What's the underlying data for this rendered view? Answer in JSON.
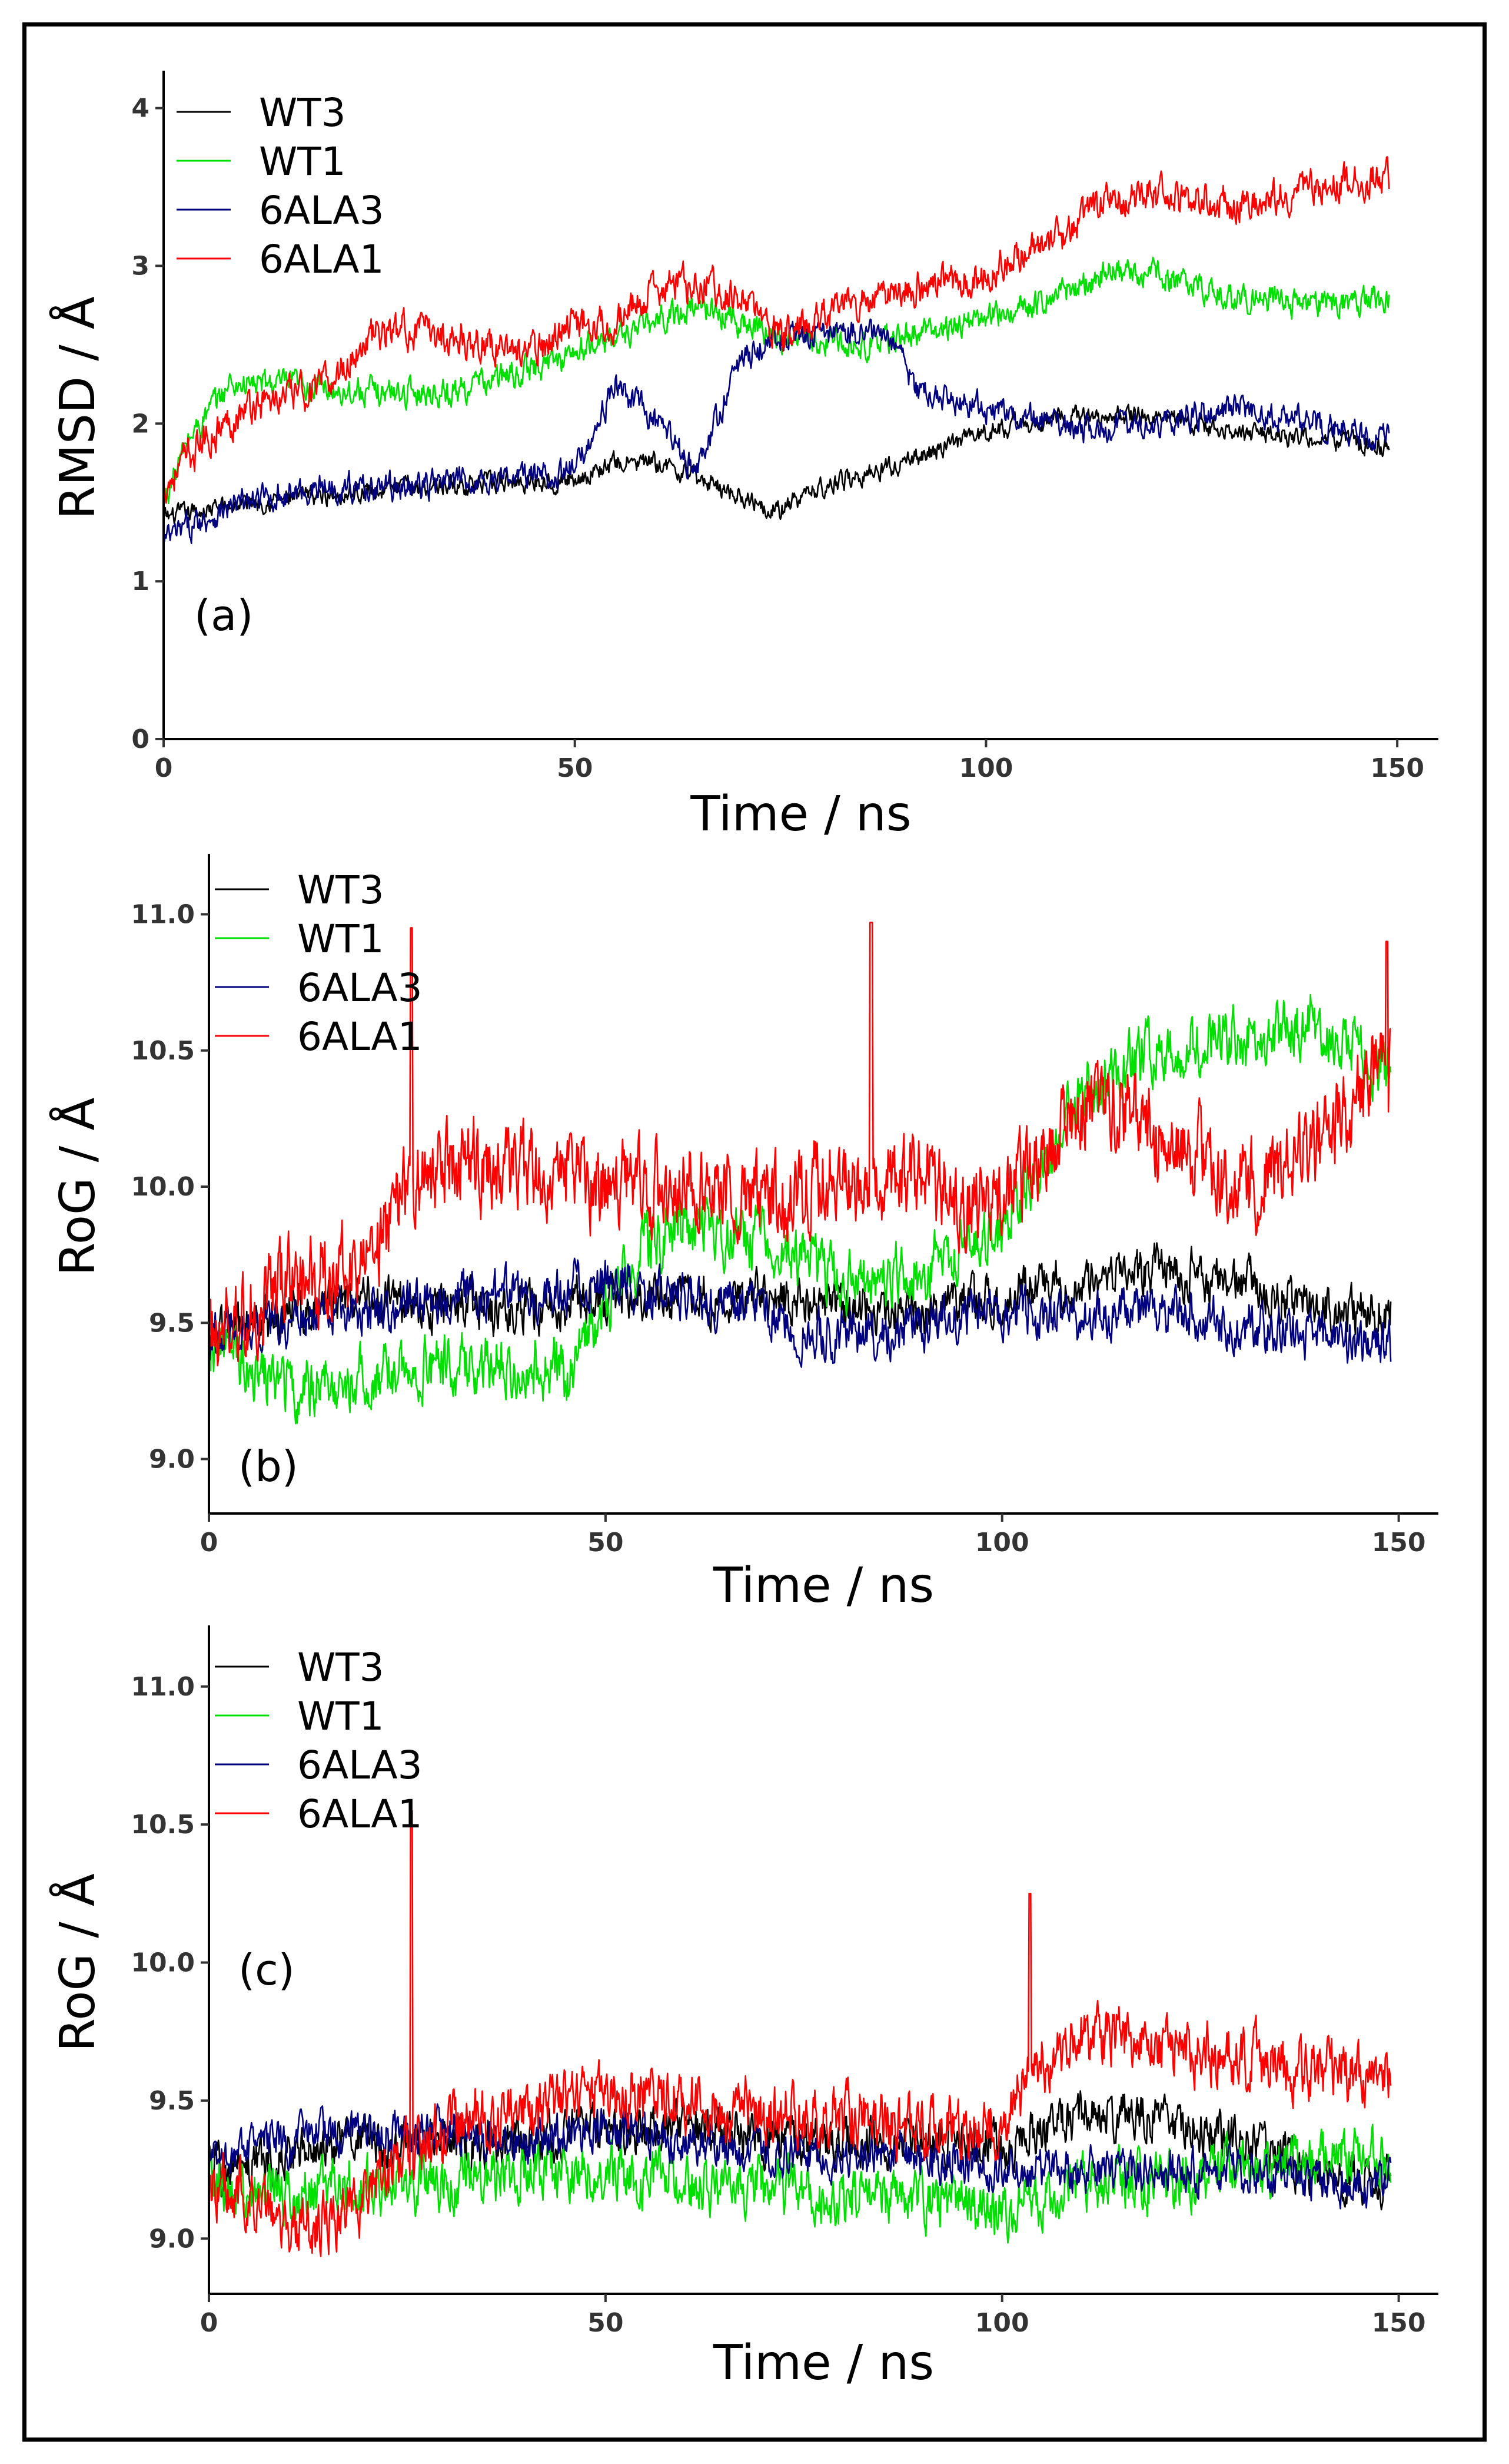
{
  "chart_data": [
    {
      "type": "line",
      "panel_label": "(a)",
      "xlabel": "Time / ns",
      "ylabel": "RMSD / Å",
      "xlim": [
        0,
        155
      ],
      "ylim": [
        0,
        4.2
      ],
      "xticks": [
        0,
        50,
        100,
        150
      ],
      "xtick_labels": [
        "0",
        "50",
        "100",
        "150"
      ],
      "yticks": [
        0,
        1,
        2,
        3,
        4
      ],
      "ytick_labels": [
        "0",
        "1",
        "2",
        "3",
        "4"
      ],
      "legend_position": "top-left",
      "series": [
        {
          "name": "WT3",
          "color": "#000000",
          "noise": 0.05,
          "x": [
            0,
            5,
            10,
            20,
            30,
            40,
            50,
            55,
            60,
            65,
            70,
            75,
            80,
            90,
            100,
            110,
            120,
            130,
            140,
            149
          ],
          "values": [
            1.4,
            1.45,
            1.5,
            1.55,
            1.6,
            1.62,
            1.65,
            1.75,
            1.75,
            1.65,
            1.55,
            1.45,
            1.6,
            1.75,
            1.95,
            2.05,
            2.05,
            1.95,
            1.9,
            1.85
          ]
        },
        {
          "name": "WT1",
          "color": "#00e000",
          "noise": 0.07,
          "x": [
            0,
            3,
            8,
            15,
            25,
            35,
            45,
            55,
            65,
            75,
            85,
            95,
            105,
            115,
            120,
            130,
            140,
            149
          ],
          "values": [
            1.5,
            1.9,
            2.25,
            2.25,
            2.2,
            2.2,
            2.35,
            2.55,
            2.75,
            2.55,
            2.5,
            2.6,
            2.75,
            2.95,
            2.95,
            2.8,
            2.75,
            2.8
          ]
        },
        {
          "name": "6ALA3",
          "color": "#000080",
          "noise": 0.07,
          "x": [
            0,
            5,
            10,
            20,
            30,
            40,
            50,
            55,
            60,
            65,
            70,
            75,
            80,
            85,
            88,
            92,
            100,
            110,
            120,
            130,
            140,
            149
          ],
          "values": [
            1.25,
            1.4,
            1.5,
            1.6,
            1.6,
            1.65,
            1.7,
            2.25,
            2.0,
            1.7,
            2.4,
            2.55,
            2.55,
            2.6,
            2.55,
            2.2,
            2.1,
            1.95,
            2.0,
            2.1,
            2.0,
            1.9
          ]
        },
        {
          "name": "6ALA1",
          "color": "#ff0000",
          "noise": 0.09,
          "x": [
            0,
            5,
            10,
            20,
            25,
            30,
            40,
            45,
            50,
            55,
            60,
            65,
            70,
            75,
            80,
            90,
            100,
            110,
            115,
            120,
            130,
            140,
            149
          ],
          "values": [
            1.6,
            1.9,
            2.1,
            2.25,
            2.55,
            2.6,
            2.5,
            2.45,
            2.65,
            2.65,
            2.85,
            2.9,
            2.8,
            2.55,
            2.7,
            2.85,
            2.95,
            3.2,
            3.45,
            3.45,
            3.4,
            3.5,
            3.55
          ]
        }
      ]
    },
    {
      "type": "line",
      "panel_label": "(b)",
      "xlabel": "Time / ns",
      "ylabel": "RoG / Å",
      "xlim": [
        0,
        155
      ],
      "ylim": [
        8.8,
        11.2
      ],
      "xticks": [
        0,
        50,
        100,
        150
      ],
      "xtick_labels": [
        "0",
        "50",
        "100",
        "150"
      ],
      "yticks": [
        9.0,
        9.5,
        10.0,
        10.5,
        11.0
      ],
      "ytick_labels": [
        "9.0",
        "9.5",
        "10.0",
        "10.5",
        "11.0"
      ],
      "legend_position": "top-left",
      "series": [
        {
          "name": "WT3",
          "color": "#000000",
          "noise": 0.07,
          "x": [
            0,
            10,
            20,
            30,
            40,
            50,
            60,
            70,
            80,
            90,
            100,
            110,
            120,
            130,
            140,
            149
          ],
          "values": [
            9.45,
            9.55,
            9.6,
            9.55,
            9.55,
            9.6,
            9.6,
            9.6,
            9.55,
            9.55,
            9.6,
            9.65,
            9.7,
            9.65,
            9.55,
            9.55
          ]
        },
        {
          "name": "WT1",
          "color": "#00e000",
          "noise": 0.09,
          "x": [
            0,
            5,
            10,
            20,
            30,
            40,
            45,
            50,
            55,
            60,
            70,
            80,
            90,
            100,
            110,
            120,
            130,
            140,
            145,
            149
          ],
          "values": [
            9.45,
            9.35,
            9.25,
            9.3,
            9.35,
            9.35,
            9.3,
            9.55,
            9.8,
            9.85,
            9.8,
            9.65,
            9.7,
            9.85,
            10.35,
            10.5,
            10.55,
            10.6,
            10.5,
            10.4
          ]
        },
        {
          "name": "6ALA3",
          "color": "#000080",
          "noise": 0.07,
          "x": [
            0,
            10,
            20,
            30,
            40,
            50,
            60,
            70,
            75,
            80,
            90,
            100,
            110,
            120,
            130,
            140,
            149
          ],
          "values": [
            9.45,
            9.5,
            9.55,
            9.6,
            9.6,
            9.65,
            9.6,
            9.55,
            9.45,
            9.45,
            9.5,
            9.55,
            9.5,
            9.55,
            9.5,
            9.45,
            9.4
          ]
        },
        {
          "name": "6ALA1",
          "color": "#ff0000",
          "noise": 0.13,
          "x": [
            0,
            5,
            10,
            20,
            25,
            30,
            40,
            50,
            60,
            70,
            80,
            90,
            100,
            105,
            110,
            120,
            130,
            140,
            149
          ],
          "values": [
            9.45,
            9.55,
            9.65,
            9.7,
            10.0,
            10.1,
            10.05,
            10.0,
            10.0,
            9.95,
            10.05,
            10.0,
            9.95,
            10.1,
            10.3,
            10.2,
            10.0,
            10.15,
            10.5
          ]
        }
      ],
      "spikes": [
        {
          "series": "6ALA1",
          "x": 25.5,
          "value": 10.95
        },
        {
          "series": "6ALA1",
          "x": 83.5,
          "value": 10.97
        },
        {
          "series": "6ALA1",
          "x": 148.5,
          "value": 10.9
        }
      ]
    },
    {
      "type": "line",
      "panel_label": "(c)",
      "xlabel": "Time / ns",
      "ylabel": "RoG / Å",
      "xlim": [
        0,
        155
      ],
      "ylim": [
        8.8,
        11.2
      ],
      "xticks": [
        0,
        50,
        100,
        150
      ],
      "xtick_labels": [
        "0",
        "50",
        "100",
        "150"
      ],
      "yticks": [
        9.0,
        9.5,
        10.0,
        10.5,
        11.0
      ],
      "ytick_labels": [
        "9.0",
        "9.5",
        "10.0",
        "10.5",
        "11.0"
      ],
      "legend_position": "top-left",
      "series": [
        {
          "name": "WT3",
          "color": "#000000",
          "noise": 0.07,
          "x": [
            0,
            10,
            20,
            30,
            40,
            50,
            60,
            70,
            80,
            90,
            100,
            110,
            120,
            130,
            140,
            149
          ],
          "values": [
            9.25,
            9.3,
            9.35,
            9.35,
            9.35,
            9.4,
            9.4,
            9.35,
            9.35,
            9.35,
            9.35,
            9.45,
            9.45,
            9.35,
            9.25,
            9.2
          ]
        },
        {
          "name": "WT1",
          "color": "#00e000",
          "noise": 0.08,
          "x": [
            0,
            10,
            20,
            30,
            40,
            50,
            60,
            70,
            80,
            90,
            100,
            110,
            120,
            130,
            140,
            149
          ],
          "values": [
            9.2,
            9.15,
            9.2,
            9.2,
            9.25,
            9.25,
            9.2,
            9.2,
            9.15,
            9.15,
            9.1,
            9.2,
            9.2,
            9.25,
            9.3,
            9.3
          ]
        },
        {
          "name": "6ALA3",
          "color": "#000080",
          "noise": 0.06,
          "x": [
            0,
            10,
            20,
            30,
            40,
            50,
            60,
            70,
            80,
            90,
            100,
            110,
            120,
            130,
            140,
            149
          ],
          "values": [
            9.3,
            9.35,
            9.4,
            9.4,
            9.35,
            9.4,
            9.35,
            9.3,
            9.3,
            9.3,
            9.25,
            9.25,
            9.25,
            9.25,
            9.2,
            9.2
          ]
        },
        {
          "name": "6ALA1",
          "color": "#ff0000",
          "noise": 0.09,
          "x": [
            0,
            5,
            10,
            15,
            20,
            25,
            30,
            40,
            50,
            60,
            70,
            80,
            90,
            100,
            105,
            110,
            120,
            130,
            140,
            149
          ],
          "values": [
            9.2,
            9.15,
            9.05,
            9.05,
            9.15,
            9.3,
            9.4,
            9.45,
            9.55,
            9.5,
            9.45,
            9.45,
            9.4,
            9.4,
            9.65,
            9.75,
            9.7,
            9.65,
            9.6,
            9.6
          ]
        }
      ],
      "spikes": [
        {
          "series": "6ALA1",
          "x": 25.5,
          "value": 10.55
        },
        {
          "series": "6ALA1",
          "x": 103.5,
          "value": 10.25
        }
      ]
    }
  ]
}
